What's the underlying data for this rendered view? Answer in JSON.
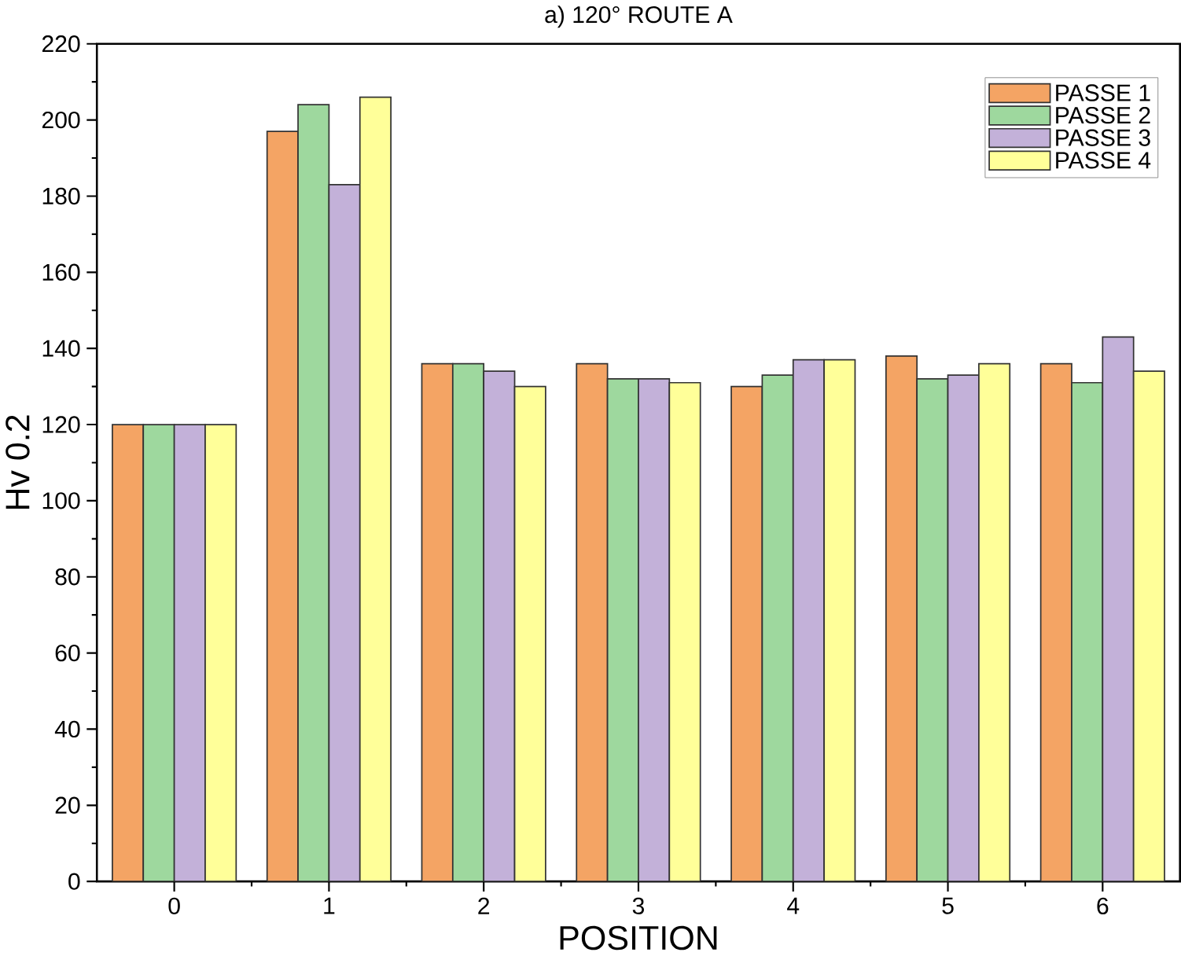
{
  "chart_data": {
    "type": "bar",
    "title": "a) 120° ROUTE A",
    "xlabel": "POSITION",
    "ylabel": "Hv 0.2",
    "categories": [
      "0",
      "1",
      "2",
      "3",
      "4",
      "5",
      "6"
    ],
    "series": [
      {
        "name": "PASSE 1",
        "color": "#f4a464",
        "values": [
          120,
          197,
          136,
          136,
          130,
          138,
          136
        ]
      },
      {
        "name": "PASSE 2",
        "color": "#9ed89e",
        "values": [
          120,
          204,
          136,
          132,
          133,
          132,
          131
        ]
      },
      {
        "name": "PASSE 3",
        "color": "#c3b1d9",
        "values": [
          120,
          183,
          134,
          132,
          137,
          133,
          143
        ]
      },
      {
        "name": "PASSE 4",
        "color": "#ffff99",
        "values": [
          120,
          206,
          130,
          131,
          137,
          136,
          134
        ]
      }
    ],
    "ylim": [
      0,
      220
    ],
    "yticks": [
      0,
      20,
      40,
      60,
      80,
      100,
      120,
      140,
      160,
      180,
      200,
      220
    ],
    "grid": false,
    "legend": "top right"
  }
}
